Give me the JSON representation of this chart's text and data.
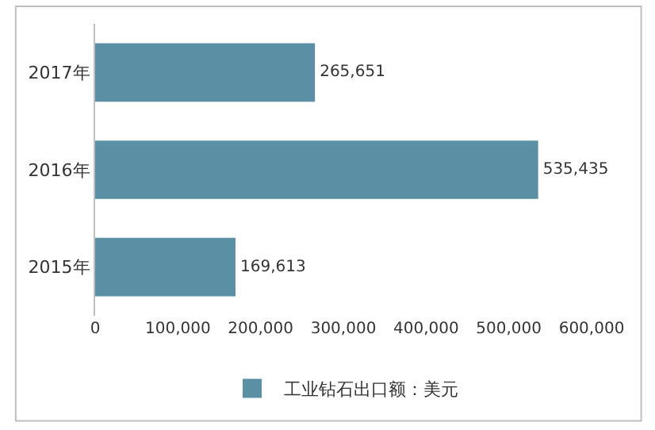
{
  "chart_data": {
    "type": "bar",
    "orientation": "horizontal",
    "categories": [
      "2017年",
      "2016年",
      "2015年"
    ],
    "series": [
      {
        "name": "工业钻石出口额：美元",
        "color": "#5b8fa3",
        "values": [
          265651,
          535435,
          169613
        ],
        "value_labels": [
          "265,651",
          "535,435",
          "169,613"
        ]
      }
    ],
    "xlim": [
      0,
      600000
    ],
    "xticks": [
      0,
      {
        "value": 100000,
        "label": "100,000"
      },
      {
        "value": 200000,
        "label": "200,000"
      },
      {
        "value": 300000,
        "label": "300,000"
      },
      {
        "value": 400000,
        "label": "400,000"
      },
      {
        "value": 500000,
        "label": "500,000"
      },
      {
        "value": 600000,
        "label": "600,000"
      }
    ],
    "grid": false,
    "legend": "bottom"
  }
}
